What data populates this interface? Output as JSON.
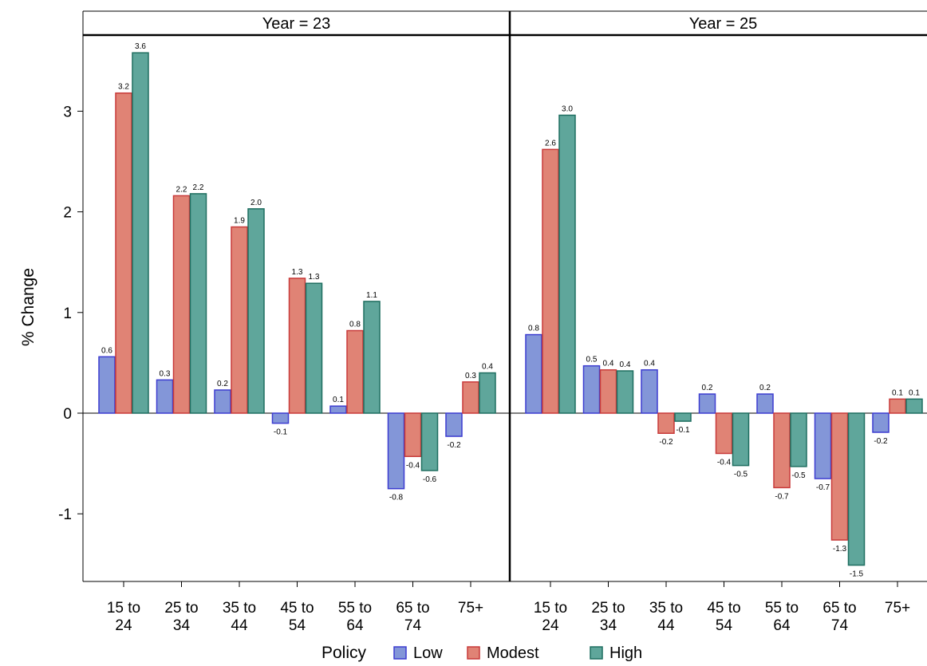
{
  "chart_data": {
    "type": "bar",
    "ylabel": "% Change",
    "ylim": [
      -1.6,
      3.8
    ],
    "yticks": [
      "-1",
      "0",
      "1",
      "2",
      "3"
    ],
    "categories": [
      [
        "15 to",
        "24"
      ],
      [
        "25 to",
        "34"
      ],
      [
        "35 to",
        "44"
      ],
      [
        "45 to",
        "54"
      ],
      [
        "55 to",
        "64"
      ],
      [
        "65 to",
        "74"
      ],
      [
        "75+"
      ]
    ],
    "legend": {
      "title": "Policy",
      "placement": "bottom",
      "items": [
        {
          "name": "Low",
          "fill": "#8396d8",
          "stroke": "#3c3cd0"
        },
        {
          "name": "Modest",
          "fill": "#e08375",
          "stroke": "#c83a3a"
        },
        {
          "name": "High",
          "fill": "#5fa69b",
          "stroke": "#1f6e60"
        }
      ]
    },
    "panels": [
      {
        "title": "Year = 23",
        "series": [
          {
            "name": "Low",
            "values": [
              0.56,
              0.33,
              0.23,
              -0.1,
              0.07,
              -0.75,
              -0.23
            ],
            "labels": [
              "0.6",
              "0.3",
              "0.2",
              "-0.1",
              "0.1",
              "-0.8",
              "-0.2"
            ]
          },
          {
            "name": "Modest",
            "values": [
              3.18,
              2.16,
              1.85,
              1.34,
              0.82,
              -0.43,
              0.31
            ],
            "labels": [
              "3.2",
              "2.2",
              "1.9",
              "1.3",
              "0.8",
              "-0.4",
              "0.3"
            ]
          },
          {
            "name": "High",
            "values": [
              3.58,
              2.18,
              2.03,
              1.29,
              1.11,
              -0.57,
              0.4
            ],
            "labels": [
              "3.6",
              "2.2",
              "2.0",
              "1.3",
              "1.1",
              "-0.6",
              "0.4"
            ]
          }
        ]
      },
      {
        "title": "Year = 25",
        "series": [
          {
            "name": "Low",
            "values": [
              0.78,
              0.47,
              0.43,
              0.19,
              0.19,
              -0.65,
              -0.19
            ],
            "labels": [
              "0.8",
              "0.5",
              "0.4",
              "0.2",
              "0.2",
              "-0.7",
              "-0.2"
            ]
          },
          {
            "name": "Modest",
            "values": [
              2.62,
              0.43,
              -0.2,
              -0.4,
              -0.74,
              -1.26,
              0.14
            ],
            "labels": [
              "2.6",
              "0.4",
              "-0.2",
              "-0.4",
              "-0.7",
              "-1.3",
              "0.1"
            ]
          },
          {
            "name": "High",
            "values": [
              2.96,
              0.42,
              -0.08,
              -0.52,
              -0.53,
              -1.51,
              0.14
            ],
            "labels": [
              "3.0",
              "0.4",
              "-0.1",
              "-0.5",
              "-0.5",
              "-1.5",
              "0.1"
            ]
          }
        ]
      }
    ]
  }
}
